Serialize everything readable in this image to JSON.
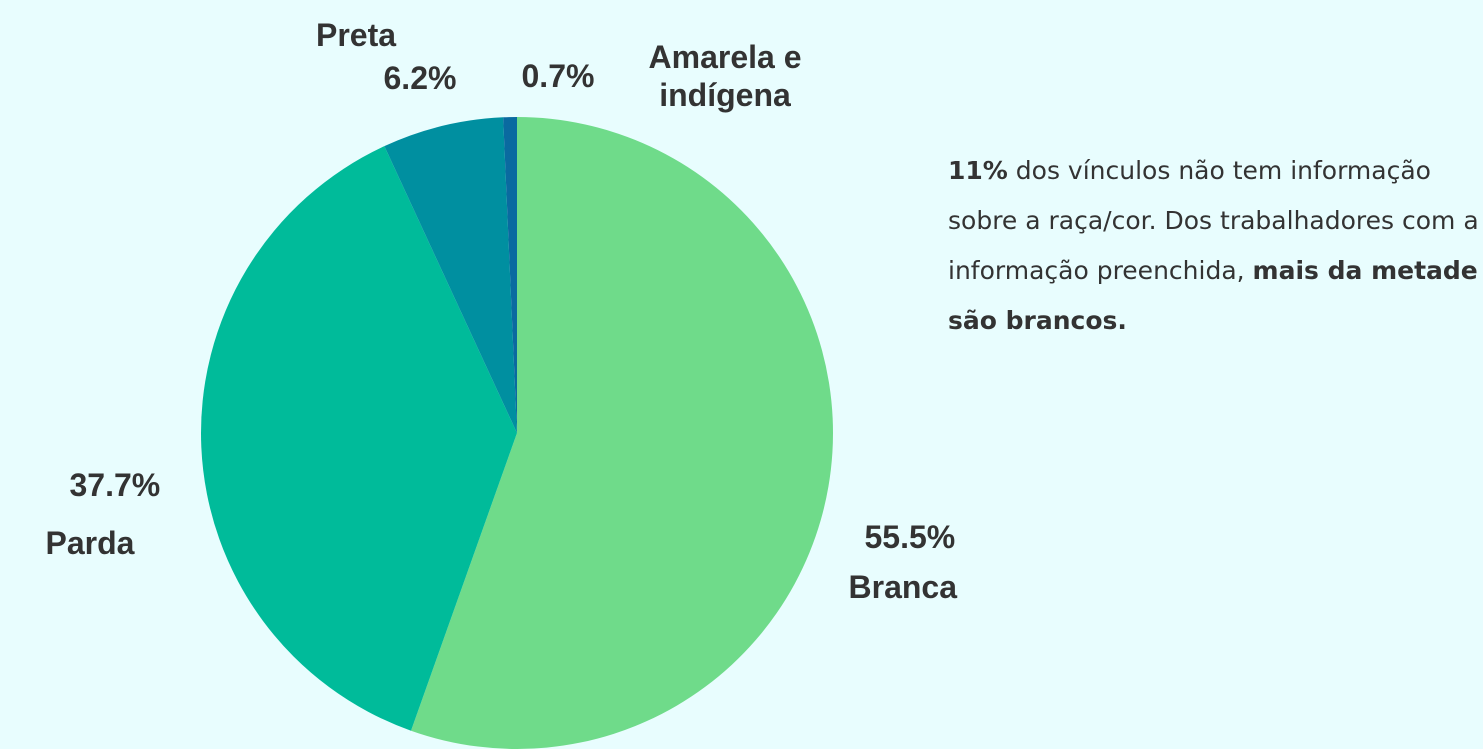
{
  "chart_data": {
    "type": "pie",
    "categories": [
      "Branca",
      "Parda",
      "Preta",
      "Amarela e indígena"
    ],
    "values": [
      55.5,
      37.7,
      6.2,
      0.7
    ],
    "value_labels": [
      "55.5%",
      "37.7%",
      "6.2%",
      "0.7%"
    ],
    "colors": [
      "#6fdb8a",
      "#00bb9a",
      "#008fa0",
      "#0a6aa0"
    ],
    "annotation": [
      {
        "text": "11%",
        "bold": true
      },
      {
        "text": " dos vínculos não tem informação sobre a raça/cor. Dos trabalhadores com a informação preenchida, ",
        "bold": false
      },
      {
        "text": "mais da metade são brancos.",
        "bold": true
      }
    ]
  }
}
